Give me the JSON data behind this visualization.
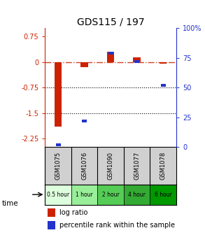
{
  "title": "GDS115 / 197",
  "samples": [
    "GSM1075",
    "GSM1076",
    "GSM1090",
    "GSM1077",
    "GSM1078"
  ],
  "time_labels": [
    "0.5 hour",
    "1 hour",
    "2 hour",
    "4 hour",
    "6 hour"
  ],
  "log_ratios": [
    -1.9,
    -0.15,
    0.3,
    0.15,
    -0.05
  ],
  "percentile_ranks": [
    2,
    22,
    79,
    72,
    52
  ],
  "ylim_left": [
    -2.5,
    1.0
  ],
  "ylim_right": [
    0,
    100
  ],
  "left_ticks": [
    0.75,
    0,
    -0.75,
    -1.5,
    -2.25
  ],
  "left_tick_labels": [
    "0.75",
    "0",
    "-0.75",
    "-1.5",
    "-2.25"
  ],
  "right_ticks": [
    100,
    75,
    50,
    25,
    0
  ],
  "right_tick_labels": [
    "100%",
    "75",
    "50",
    "25",
    "0"
  ],
  "bar_color": "#cc2200",
  "dot_color": "#2233cc",
  "hline_color": "#cc2200",
  "dotted_line_color": "#000000",
  "time_colors": [
    "#ddffdd",
    "#99ee99",
    "#55cc55",
    "#33aa33",
    "#009900"
  ],
  "sample_bg": "#d0d0d0",
  "plot_bg": "#ffffff",
  "legend_red": "#cc2200",
  "legend_blue": "#2233cc"
}
